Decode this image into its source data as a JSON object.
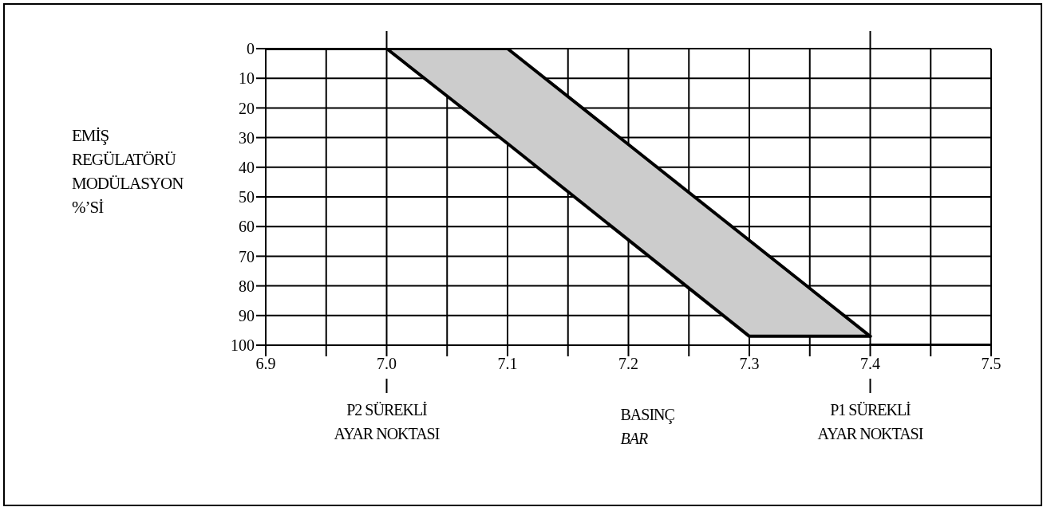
{
  "chart_data": {
    "type": "line",
    "xlabel": "BASINÇ BAR",
    "ylabel": "EMİŞ REGÜLATÖRÜ MODÜLASYON %’Sİ",
    "series": [
      {
        "color": "#000000",
        "x": [
          6.9,
          7.1,
          7.4
        ],
        "values": [
          0,
          0,
          97
        ]
      },
      {
        "color": "#000000",
        "x": [
          7.0,
          7.1,
          7.3,
          7.4
        ],
        "values": [
          0,
          32,
          97,
          97
        ],
        "lower": [
          0,
          0,
          65,
          97
        ],
        "upper": [
          0,
          32,
          97,
          97
        ]
      },
      {
        "color": "#000000",
        "x": [
          7.4,
          7.5
        ],
        "values": [
          100,
          100
        ]
      }
    ],
    "xlim": [
      6.9,
      7.5
    ],
    "xticks": [
      6.9,
      {
        "value": 6.95,
        "label": null
      },
      {
        "value": 7.0,
        "label": "7.0"
      },
      {
        "value": 7.05,
        "label": null
      },
      7.1,
      {
        "value": 7.15,
        "label": null
      },
      7.2,
      {
        "value": 7.25,
        "label": null
      },
      7.3,
      {
        "value": 7.35,
        "label": null
      },
      7.4,
      {
        "value": 7.45,
        "label": null
      },
      7.5
    ],
    "ylim": [
      100,
      0
    ],
    "yticks": [
      0,
      10,
      20,
      30,
      40,
      50,
      60,
      70,
      80,
      90,
      100
    ],
    "annotations": [
      {
        "text": "P2 SÜREKLİ AYAR NOKTASI",
        "x": 7.0
      },
      {
        "text": "P1 SÜREKLİ AYAR NOKTASI",
        "x": 7.4
      }
    ],
    "grid": true,
    "marker": "none",
    "line_style": "solid"
  }
}
